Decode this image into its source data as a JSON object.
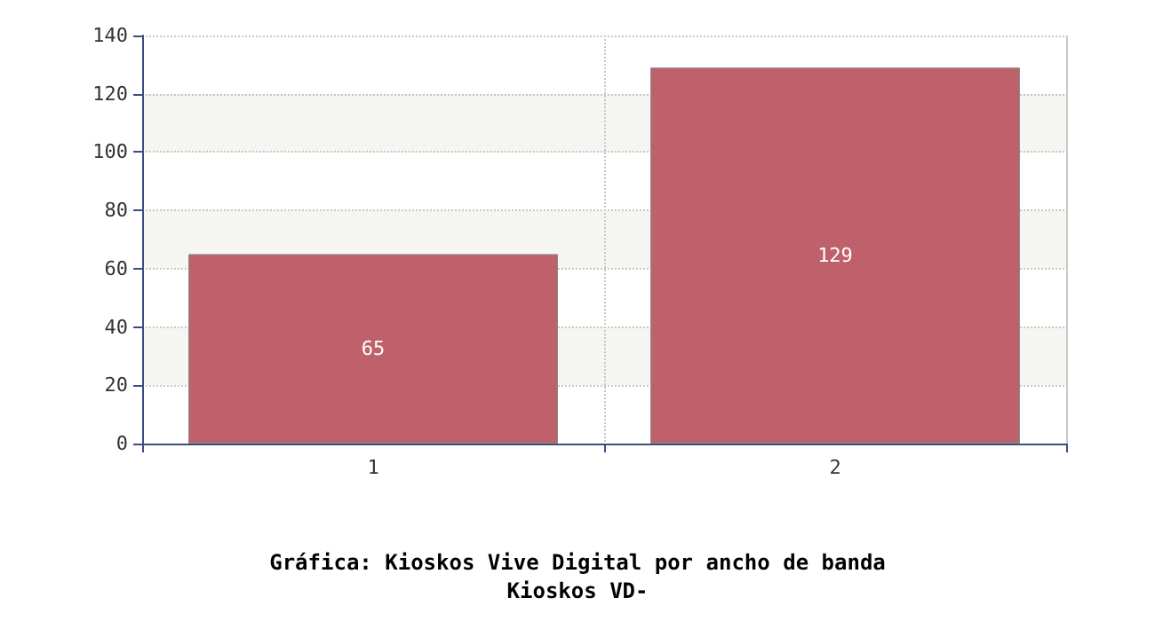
{
  "chart_data": {
    "type": "bar",
    "title": "Gráfica: Kioskos Vive Digital por ancho de banda",
    "subtitle": "Kioskos VD-",
    "categories": [
      "1",
      "2"
    ],
    "values": [
      65,
      129
    ],
    "color": "#bf616b",
    "ylim": [
      0,
      140
    ],
    "yticks": [
      0,
      20,
      40,
      60,
      80,
      100,
      120,
      140
    ],
    "grid": true,
    "data_labels": true
  }
}
